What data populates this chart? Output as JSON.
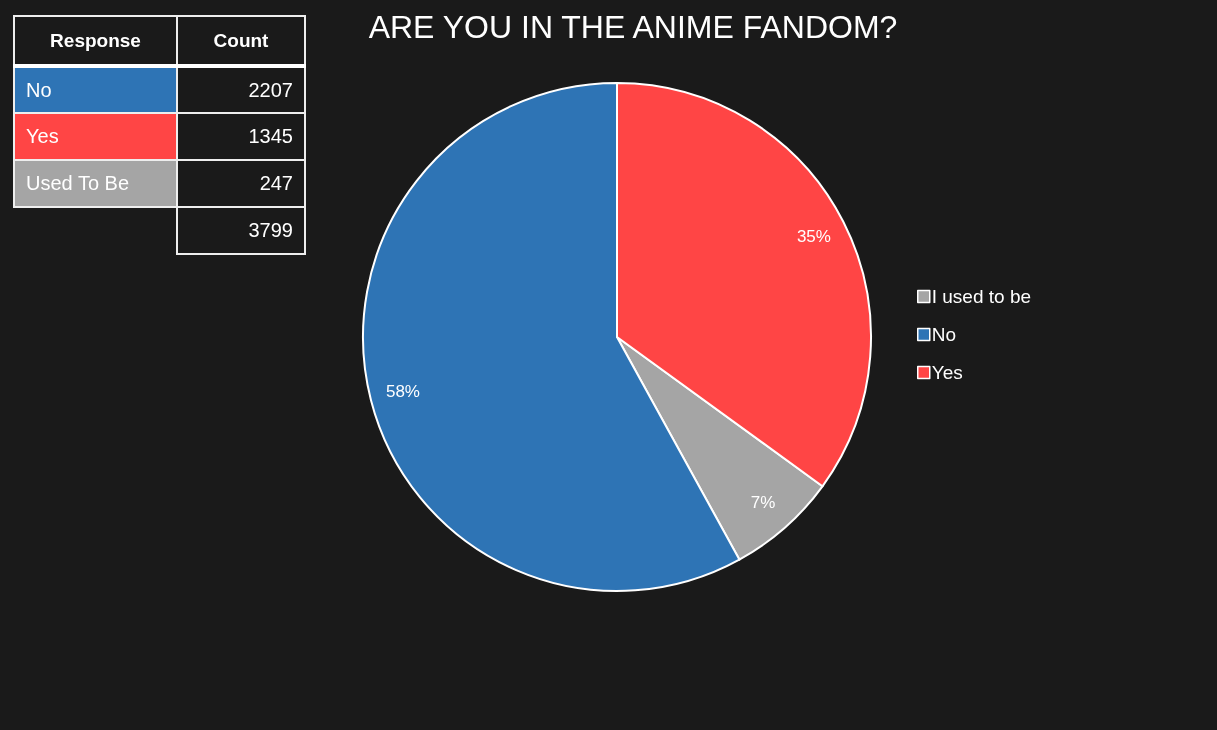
{
  "chart_data": [
    {
      "type": "other",
      "xlabel": "Response",
      "ylabel": "Count",
      "categories": [
        "No",
        "Yes",
        "Used To Be",
        null
      ],
      "values": [
        2207,
        1345,
        247,
        3799
      ],
      "colors": [
        "#2e74b5",
        "#ff4545",
        "#a5a5a5",
        null
      ],
      "data_labels": true
    },
    {
      "type": "pie",
      "title": "ARE YOU IN THE ANIME FANDOM?",
      "categories": [
        "I used to be",
        "No",
        "Yes"
      ],
      "values": [
        7,
        58,
        35
      ],
      "value_labels": [
        "7%",
        "58%",
        "35%"
      ],
      "colors": [
        "#a5a5a5",
        "#2e74b5",
        "#ff4545"
      ],
      "legend": "right"
    }
  ]
}
